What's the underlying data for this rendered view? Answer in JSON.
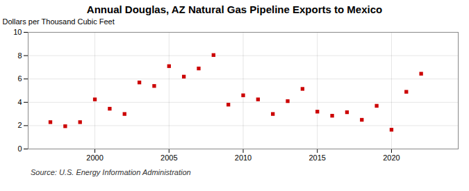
{
  "chart_data": {
    "type": "scatter",
    "title": "Annual Douglas, AZ Natural Gas Pipeline Exports to Mexico",
    "ylabel": "Dollars per Thousand Cubic Feet",
    "source": "Source: U.S. Energy Information Administration",
    "x": [
      1997,
      1998,
      1999,
      2000,
      2001,
      2002,
      2003,
      2004,
      2005,
      2006,
      2007,
      2008,
      2009,
      2010,
      2011,
      2012,
      2013,
      2014,
      2015,
      2016,
      2017,
      2018,
      2019,
      2020,
      2021,
      2022
    ],
    "values": [
      2.3,
      1.95,
      2.3,
      4.25,
      3.45,
      3.0,
      5.7,
      5.4,
      7.1,
      6.2,
      6.9,
      8.05,
      3.8,
      4.6,
      4.25,
      3.0,
      4.1,
      5.15,
      3.2,
      2.85,
      3.15,
      2.5,
      3.7,
      1.65,
      4.9,
      6.45
    ],
    "color": "#cc0000",
    "marker": "square",
    "xlim": [
      1995.5,
      2024.5
    ],
    "xticks": [
      2000,
      2005,
      2010,
      2015,
      2020
    ],
    "ylim": [
      0,
      10
    ],
    "yticks": [
      0,
      2,
      4,
      6,
      8,
      10
    ],
    "grid": true
  }
}
